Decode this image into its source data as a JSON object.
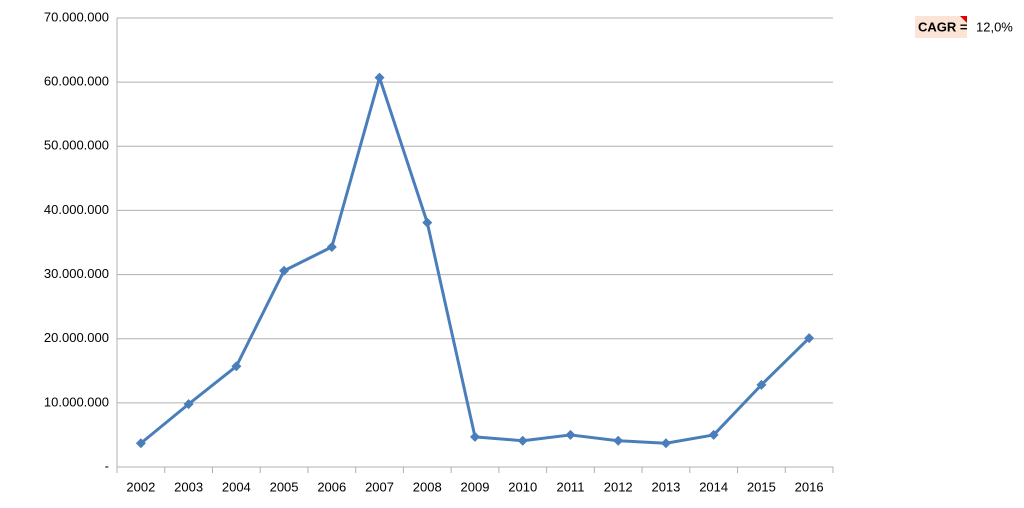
{
  "chart_data": {
    "type": "line",
    "categories": [
      "2002",
      "2003",
      "2004",
      "2005",
      "2006",
      "2007",
      "2008",
      "2009",
      "2010",
      "2011",
      "2012",
      "2013",
      "2014",
      "2015",
      "2016"
    ],
    "series": [
      {
        "color": "#4a7ebb",
        "values": [
          3700000,
          9800000,
          15700000,
          30600000,
          34300000,
          60700000,
          38100000,
          4700000,
          4100000,
          5000000,
          4100000,
          3700000,
          5000000,
          12800000,
          20100000
        ]
      }
    ],
    "ylim": [
      0,
      70000000
    ],
    "yticks": [
      {
        "value": 0,
        "label": "-"
      },
      {
        "value": 10000000,
        "label": "10.000.000"
      },
      {
        "value": 20000000,
        "label": "20.000.000"
      },
      {
        "value": 30000000,
        "label": "30.000.000"
      },
      {
        "value": 40000000,
        "label": "40.000.000"
      },
      {
        "value": 50000000,
        "label": "50.000.000"
      },
      {
        "value": 60000000,
        "label": "60.000.000"
      },
      {
        "value": 70000000,
        "label": "70.000.000"
      }
    ],
    "grid": true,
    "annotation": {
      "label": "CAGR =",
      "value": "12,0%"
    }
  }
}
